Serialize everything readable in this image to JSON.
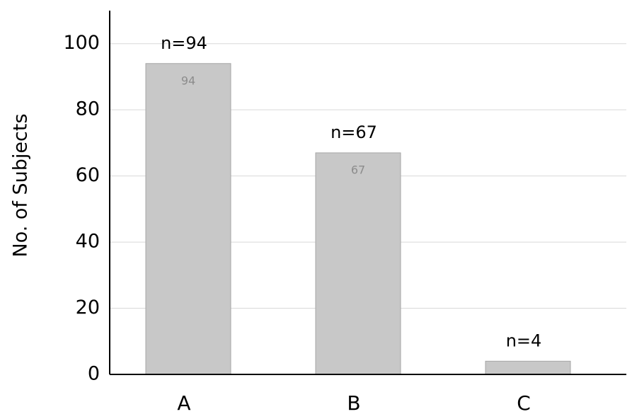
{
  "chart_data": {
    "type": "bar",
    "y_label": "No. of Subjects",
    "categories": [
      "A",
      "B",
      "C"
    ],
    "values": [
      94,
      67,
      4
    ],
    "value_labels": [
      "n=94",
      "n=67",
      "n=4"
    ],
    "color": "#c8c8c8",
    "ylim": [
      0,
      110
    ],
    "yticks": [
      0,
      20,
      40,
      60,
      80,
      100
    ],
    "grid": true
  }
}
